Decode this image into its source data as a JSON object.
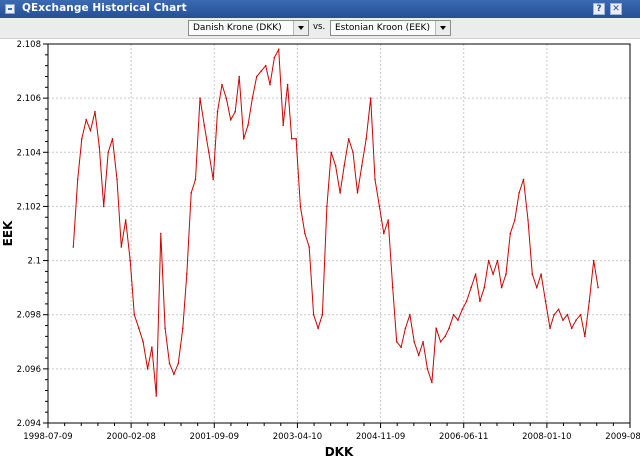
{
  "window": {
    "title": "QExchange Historical Chart",
    "help_button": "?",
    "close_button": "✕"
  },
  "selector": {
    "base_currency": "Danish Krone (DKK)",
    "vs_label": "vs.",
    "quote_currency": "Estonian Kroon (EEK)"
  },
  "chart_data": {
    "type": "line",
    "title": "",
    "xlabel": "DKK",
    "ylabel": "EEK",
    "x_tick_labels": [
      "1998-07-09",
      "2000-02-08",
      "2001-09-09",
      "2003-04-10",
      "2004-11-09",
      "2006-06-11",
      "2008-01-10",
      "2009-08-11"
    ],
    "y_tick_labels": [
      "2.094",
      "2.096",
      "2.098",
      "2.1",
      "2.102",
      "2.104",
      "2.106",
      "2.108"
    ],
    "xlim": [
      "1998-07-09",
      "2009-08-11"
    ],
    "ylim": [
      2.094,
      2.108
    ],
    "grid": true,
    "line_color": "#d00000",
    "series": [
      {
        "x": [
          "1999-01-01",
          "1999-02-01",
          "1999-03-01",
          "1999-04-01",
          "1999-05-01",
          "1999-06-01",
          "1999-07-01",
          "1999-08-01",
          "1999-09-01",
          "1999-10-01",
          "1999-11-01",
          "1999-12-01",
          "2000-01-01",
          "2000-02-01",
          "2000-03-01",
          "2000-04-01",
          "2000-05-01",
          "2000-06-01",
          "2000-07-01",
          "2000-08-01",
          "2000-09-01",
          "2000-10-01",
          "2000-11-01",
          "2000-12-01",
          "2001-01-01",
          "2001-02-01",
          "2001-03-01",
          "2001-04-01",
          "2001-05-01",
          "2001-06-01",
          "2001-07-01",
          "2001-08-01",
          "2001-09-01",
          "2001-10-01",
          "2001-11-01",
          "2001-12-01",
          "2002-01-01",
          "2002-02-01",
          "2002-03-01",
          "2002-04-01",
          "2002-05-01",
          "2002-06-01",
          "2002-07-01",
          "2002-08-01",
          "2002-09-01",
          "2002-10-01",
          "2002-11-01",
          "2002-12-01",
          "2003-01-01",
          "2003-02-01",
          "2003-03-01",
          "2003-04-01",
          "2003-05-01",
          "2003-06-01",
          "2003-07-01",
          "2003-08-01",
          "2003-09-01",
          "2003-10-01",
          "2003-11-01",
          "2003-12-01",
          "2004-01-01",
          "2004-02-01",
          "2004-03-01",
          "2004-04-01",
          "2004-05-01",
          "2004-06-01",
          "2004-07-01",
          "2004-08-01",
          "2004-09-01",
          "2004-10-01",
          "2004-11-01",
          "2004-12-01",
          "2005-01-01",
          "2005-02-01",
          "2005-03-01",
          "2005-04-01",
          "2005-05-01",
          "2005-06-01",
          "2005-07-01",
          "2005-08-01",
          "2005-09-01",
          "2005-10-01",
          "2005-11-01",
          "2005-12-01",
          "2006-01-01",
          "2006-02-01",
          "2006-03-01",
          "2006-04-01",
          "2006-05-01",
          "2006-06-01",
          "2006-07-01",
          "2006-08-01",
          "2006-09-01",
          "2006-10-01",
          "2006-11-01",
          "2006-12-01",
          "2007-01-01",
          "2007-02-01",
          "2007-03-01",
          "2007-04-01",
          "2007-05-01",
          "2007-06-01",
          "2007-07-01",
          "2007-08-01",
          "2007-09-01",
          "2007-10-01",
          "2007-11-01",
          "2007-12-01",
          "2008-01-01",
          "2008-02-01",
          "2008-03-01",
          "2008-04-01",
          "2008-05-01",
          "2008-06-01",
          "2008-07-01",
          "2008-08-01",
          "2008-09-01",
          "2008-10-01",
          "2008-11-01",
          "2008-12-01",
          "2009-01-01"
        ],
        "values": [
          2.1005,
          2.103,
          2.1045,
          2.1052,
          2.1048,
          2.1055,
          2.1042,
          2.102,
          2.104,
          2.1045,
          2.103,
          2.1005,
          2.1015,
          2.1,
          2.098,
          2.0975,
          2.097,
          2.096,
          2.0968,
          2.095,
          2.101,
          2.0975,
          2.0962,
          2.0958,
          2.0962,
          2.0975,
          2.0995,
          2.1025,
          2.103,
          2.106,
          2.105,
          2.104,
          2.103,
          2.1055,
          2.1065,
          2.106,
          2.1052,
          2.1055,
          2.1068,
          2.1045,
          2.105,
          2.106,
          2.1068,
          2.107,
          2.1072,
          2.1065,
          2.1075,
          2.1078,
          2.105,
          2.1065,
          2.1045,
          2.1045,
          2.102,
          2.101,
          2.1005,
          2.098,
          2.0975,
          2.098,
          2.102,
          2.104,
          2.1035,
          2.1025,
          2.1035,
          2.1045,
          2.104,
          2.1025,
          2.1035,
          2.1045,
          2.106,
          2.103,
          2.102,
          2.101,
          2.1015,
          2.099,
          2.097,
          2.0968,
          2.0975,
          2.098,
          2.097,
          2.0965,
          2.097,
          2.096,
          2.0955,
          2.0975,
          2.097,
          2.0972,
          2.0975,
          2.098,
          2.0978,
          2.0982,
          2.0985,
          2.099,
          2.0995,
          2.0985,
          2.099,
          2.1,
          2.0995,
          2.1,
          2.099,
          2.0995,
          2.101,
          2.1015,
          2.1025,
          2.103,
          2.1015,
          2.0995,
          2.099,
          2.0995,
          2.0985,
          2.0975,
          2.098,
          2.0982,
          2.0978,
          2.098,
          2.0975,
          2.0978,
          2.098,
          2.0972,
          2.0985,
          2.1,
          2.099
        ]
      }
    ]
  }
}
